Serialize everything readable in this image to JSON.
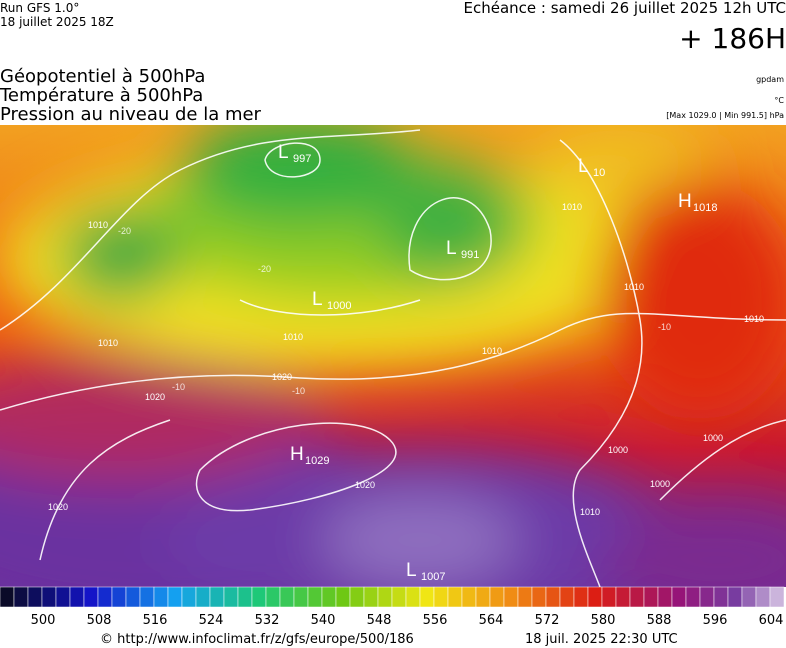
{
  "header": {
    "run": "Run GFS 1.0°",
    "run_date": "18 juillet 2025 18Z",
    "echeance": "Echéance : samedi 26 juillet 2025 12h UTC",
    "lead": "+ 186H",
    "titles": [
      "Géopotentiel à 500hPa",
      "Température à 500hPa",
      "Pression au niveau de la mer"
    ],
    "unit_geo": "gpdam",
    "unit_temp": "°C",
    "range": "[Max 1029.0 | Min 991.5] hPa"
  },
  "map": {
    "centers": [
      {
        "letter": "L",
        "value": "997"
      },
      {
        "letter": "L",
        "value": "10"
      },
      {
        "letter": "H",
        "value": "1018"
      },
      {
        "letter": "L",
        "value": "991"
      },
      {
        "letter": "L",
        "value": "1000"
      },
      {
        "letter": "H",
        "value": "1029"
      },
      {
        "letter": "L",
        "value": "1007"
      }
    ],
    "isobar_labels": [
      "1010",
      "1010",
      "1020",
      "1020",
      "1020",
      "1010",
      "1010",
      "1010",
      "1010",
      "1010",
      "1000",
      "1000",
      "1000",
      "1020",
      "1010"
    ],
    "temp_labels": [
      "-20",
      "-20",
      "-10",
      "-10",
      "-10"
    ]
  },
  "colorbar": {
    "labels": [
      "500",
      "508",
      "516",
      "524",
      "532",
      "540",
      "548",
      "556",
      "564",
      "572",
      "580",
      "588",
      "596",
      "604"
    ]
  },
  "footer": {
    "url": "© http://www.infoclimat.fr/z/gfs/europe/500/186",
    "generated": "18 juil. 2025 22:30 UTC"
  }
}
